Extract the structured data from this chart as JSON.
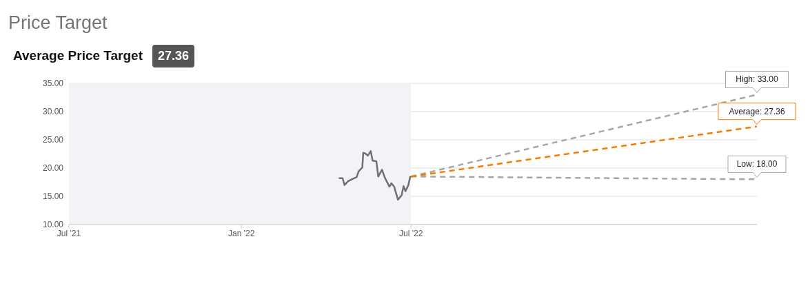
{
  "chart_data": {
    "type": "line",
    "title": "Price Target",
    "subtitle": "Average Price Target",
    "annotations": [
      "27.36",
      {
        "text": "High: 33.00",
        "x": "2023-07-05",
        "y": 33
      },
      {
        "text": "Average: 27.36",
        "x": "2023-07-05",
        "y": 27.36
      },
      {
        "text": "Low: 18.00",
        "x": "2023-07-05",
        "y": 18
      }
    ],
    "series": [
      {
        "color": "#707070",
        "line_style": "solid",
        "x": [
          "2022-04-15",
          "2022-04-19",
          "2022-04-21",
          "2022-04-25",
          "2022-04-30",
          "2022-05-04",
          "2022-05-06",
          "2022-05-10",
          "2022-05-11",
          "2022-05-13",
          "2022-05-16",
          "2022-05-19",
          "2022-05-21",
          "2022-05-25",
          "2022-05-27",
          "2022-05-31",
          "2022-06-03",
          "2022-06-08",
          "2022-06-10",
          "2022-06-13",
          "2022-06-17",
          "2022-06-21",
          "2022-06-23",
          "2022-06-25",
          "2022-06-28",
          "2022-06-30",
          "2022-07-01"
        ],
        "values": [
          18.2,
          18.2,
          17.0,
          17.7,
          18.1,
          18.4,
          19.4,
          20.1,
          22.7,
          22.6,
          22.2,
          23.0,
          21.3,
          21.2,
          18.5,
          19.7,
          18.3,
          16.7,
          17.3,
          16.7,
          14.4,
          15.2,
          16.8,
          15.9,
          16.9,
          18.4,
          18.5
        ]
      },
      {
        "color": "#a6a6a6",
        "line_style": "dashed",
        "x": [
          "2022-07-01",
          "2023-07-05"
        ],
        "values": [
          18.5,
          33
        ]
      },
      {
        "color": "#a6a6a6",
        "line_style": "dashed",
        "x": [
          "2022-07-01",
          "2023-07-05"
        ],
        "values": [
          18.5,
          18
        ]
      },
      {
        "color": "#f57c00",
        "line_style": "dashed",
        "x": [
          "2022-07-01",
          "2023-07-05"
        ],
        "values": [
          18.5,
          27.36
        ]
      }
    ],
    "bands": [
      {
        "axis": "x",
        "from": "2021-07-01",
        "to": "2022-07-01",
        "color": "#f2f3f6"
      }
    ],
    "xlim": [
      "2021-07-01",
      "2023-07-05"
    ],
    "xticks": [
      {
        "value": "2021-07-01",
        "label": "Jul '21"
      },
      {
        "value": "2022-01-01",
        "label": "Jan '22"
      },
      {
        "value": "2022-07-01",
        "label": "Jul '22"
      }
    ],
    "ylim": [
      10,
      35
    ],
    "yticks": [
      {
        "value": 10,
        "label": "10.00"
      },
      {
        "value": 15,
        "label": "15.00"
      },
      {
        "value": 20,
        "label": "20.00"
      },
      {
        "value": 25,
        "label": "25.00"
      },
      {
        "value": 30,
        "label": "30.00"
      },
      {
        "value": 35,
        "label": "35.00"
      }
    ],
    "grid": "y"
  }
}
